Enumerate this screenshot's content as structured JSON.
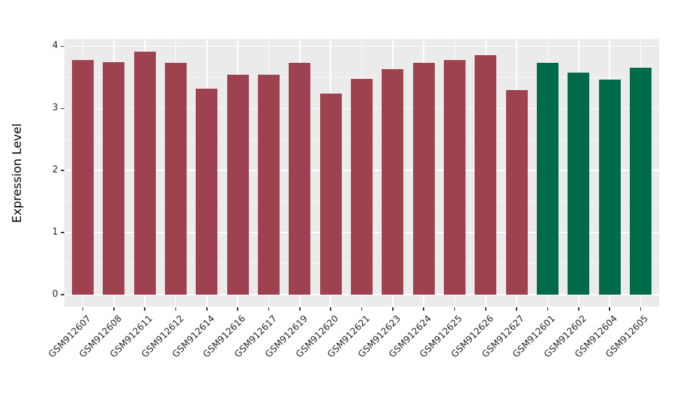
{
  "chart_data": {
    "type": "bar",
    "title": "",
    "xlabel": "",
    "ylabel": "Expression Level",
    "ylim": [
      0,
      4
    ],
    "yticks": [
      0,
      1,
      2,
      3,
      4
    ],
    "minor_yticks": [
      0.5,
      1.5,
      2.5,
      3.5
    ],
    "grid": "major-and-minor, white on gray panel",
    "legend_position": "none",
    "panel_background": "#EBEBEB",
    "grid_color": "#FFFFFF",
    "categories": [
      "GSM912607",
      "GSM912608",
      "GSM912611",
      "GSM912612",
      "GSM912614",
      "GSM912616",
      "GSM912617",
      "GSM912619",
      "GSM912620",
      "GSM912621",
      "GSM912623",
      "GSM912624",
      "GSM912625",
      "GSM912626",
      "GSM912627",
      "GSM912601",
      "GSM912602",
      "GSM912604",
      "GSM912605"
    ],
    "values": [
      3.78,
      3.75,
      3.92,
      3.74,
      3.32,
      3.54,
      3.54,
      3.74,
      3.24,
      3.48,
      3.63,
      3.73,
      3.78,
      3.86,
      3.3,
      3.73,
      3.58,
      3.47,
      3.66
    ],
    "groups": [
      "group1",
      "group1",
      "group1",
      "group1",
      "group1",
      "group1",
      "group1",
      "group1",
      "group1",
      "group1",
      "group1",
      "group1",
      "group1",
      "group1",
      "group1",
      "group2",
      "group2",
      "group2",
      "group2"
    ],
    "group_colors": {
      "group1": "#9E4250",
      "group2": "#006B4A"
    }
  }
}
